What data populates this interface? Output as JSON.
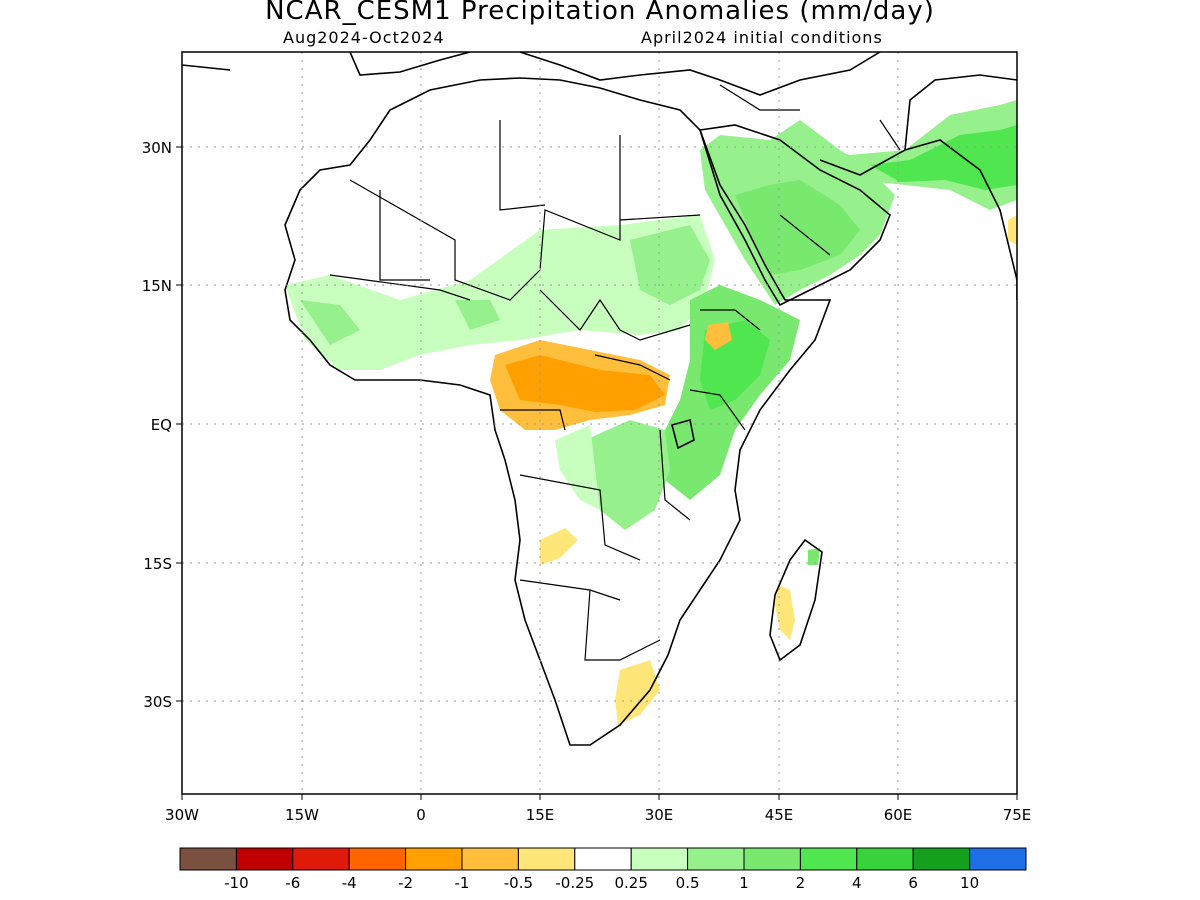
{
  "title": "NCAR_CESM1 Precipitation Anomalies (mm/day)",
  "subtitle_left": "Aug2024-Oct2024",
  "subtitle_right": "April2024 initial conditions",
  "lat_labels": [
    "30N",
    "15N",
    "EQ",
    "15S",
    "30S"
  ],
  "lon_labels": [
    "30W",
    "15W",
    "0",
    "15E",
    "30E",
    "45E",
    "60E",
    "75E"
  ],
  "colorbar": {
    "colors": [
      "#7a5040",
      "#c00000",
      "#e01a0a",
      "#ff6400",
      "#ffa000",
      "#ffbe3c",
      "#ffe678",
      "#ffffff",
      "#c8ffbe",
      "#96f08c",
      "#78e86e",
      "#50e650",
      "#37d23c",
      "#14a01e",
      "#1e6ee6"
    ],
    "labels": [
      "-10",
      "-6",
      "-4",
      "-2",
      "-1",
      "-0.5",
      "-0.25",
      "0.25",
      "0.5",
      "1",
      "2",
      "4",
      "6",
      "10"
    ]
  },
  "legend_levels": {
    "dry_light": "#ffe678",
    "dry_mid": "#ffbe3c",
    "dry_strong": "#ffa000",
    "wet_light": "#c8ffbe",
    "wet_mid": "#96f08c",
    "wet_strong": "#50e650"
  }
}
